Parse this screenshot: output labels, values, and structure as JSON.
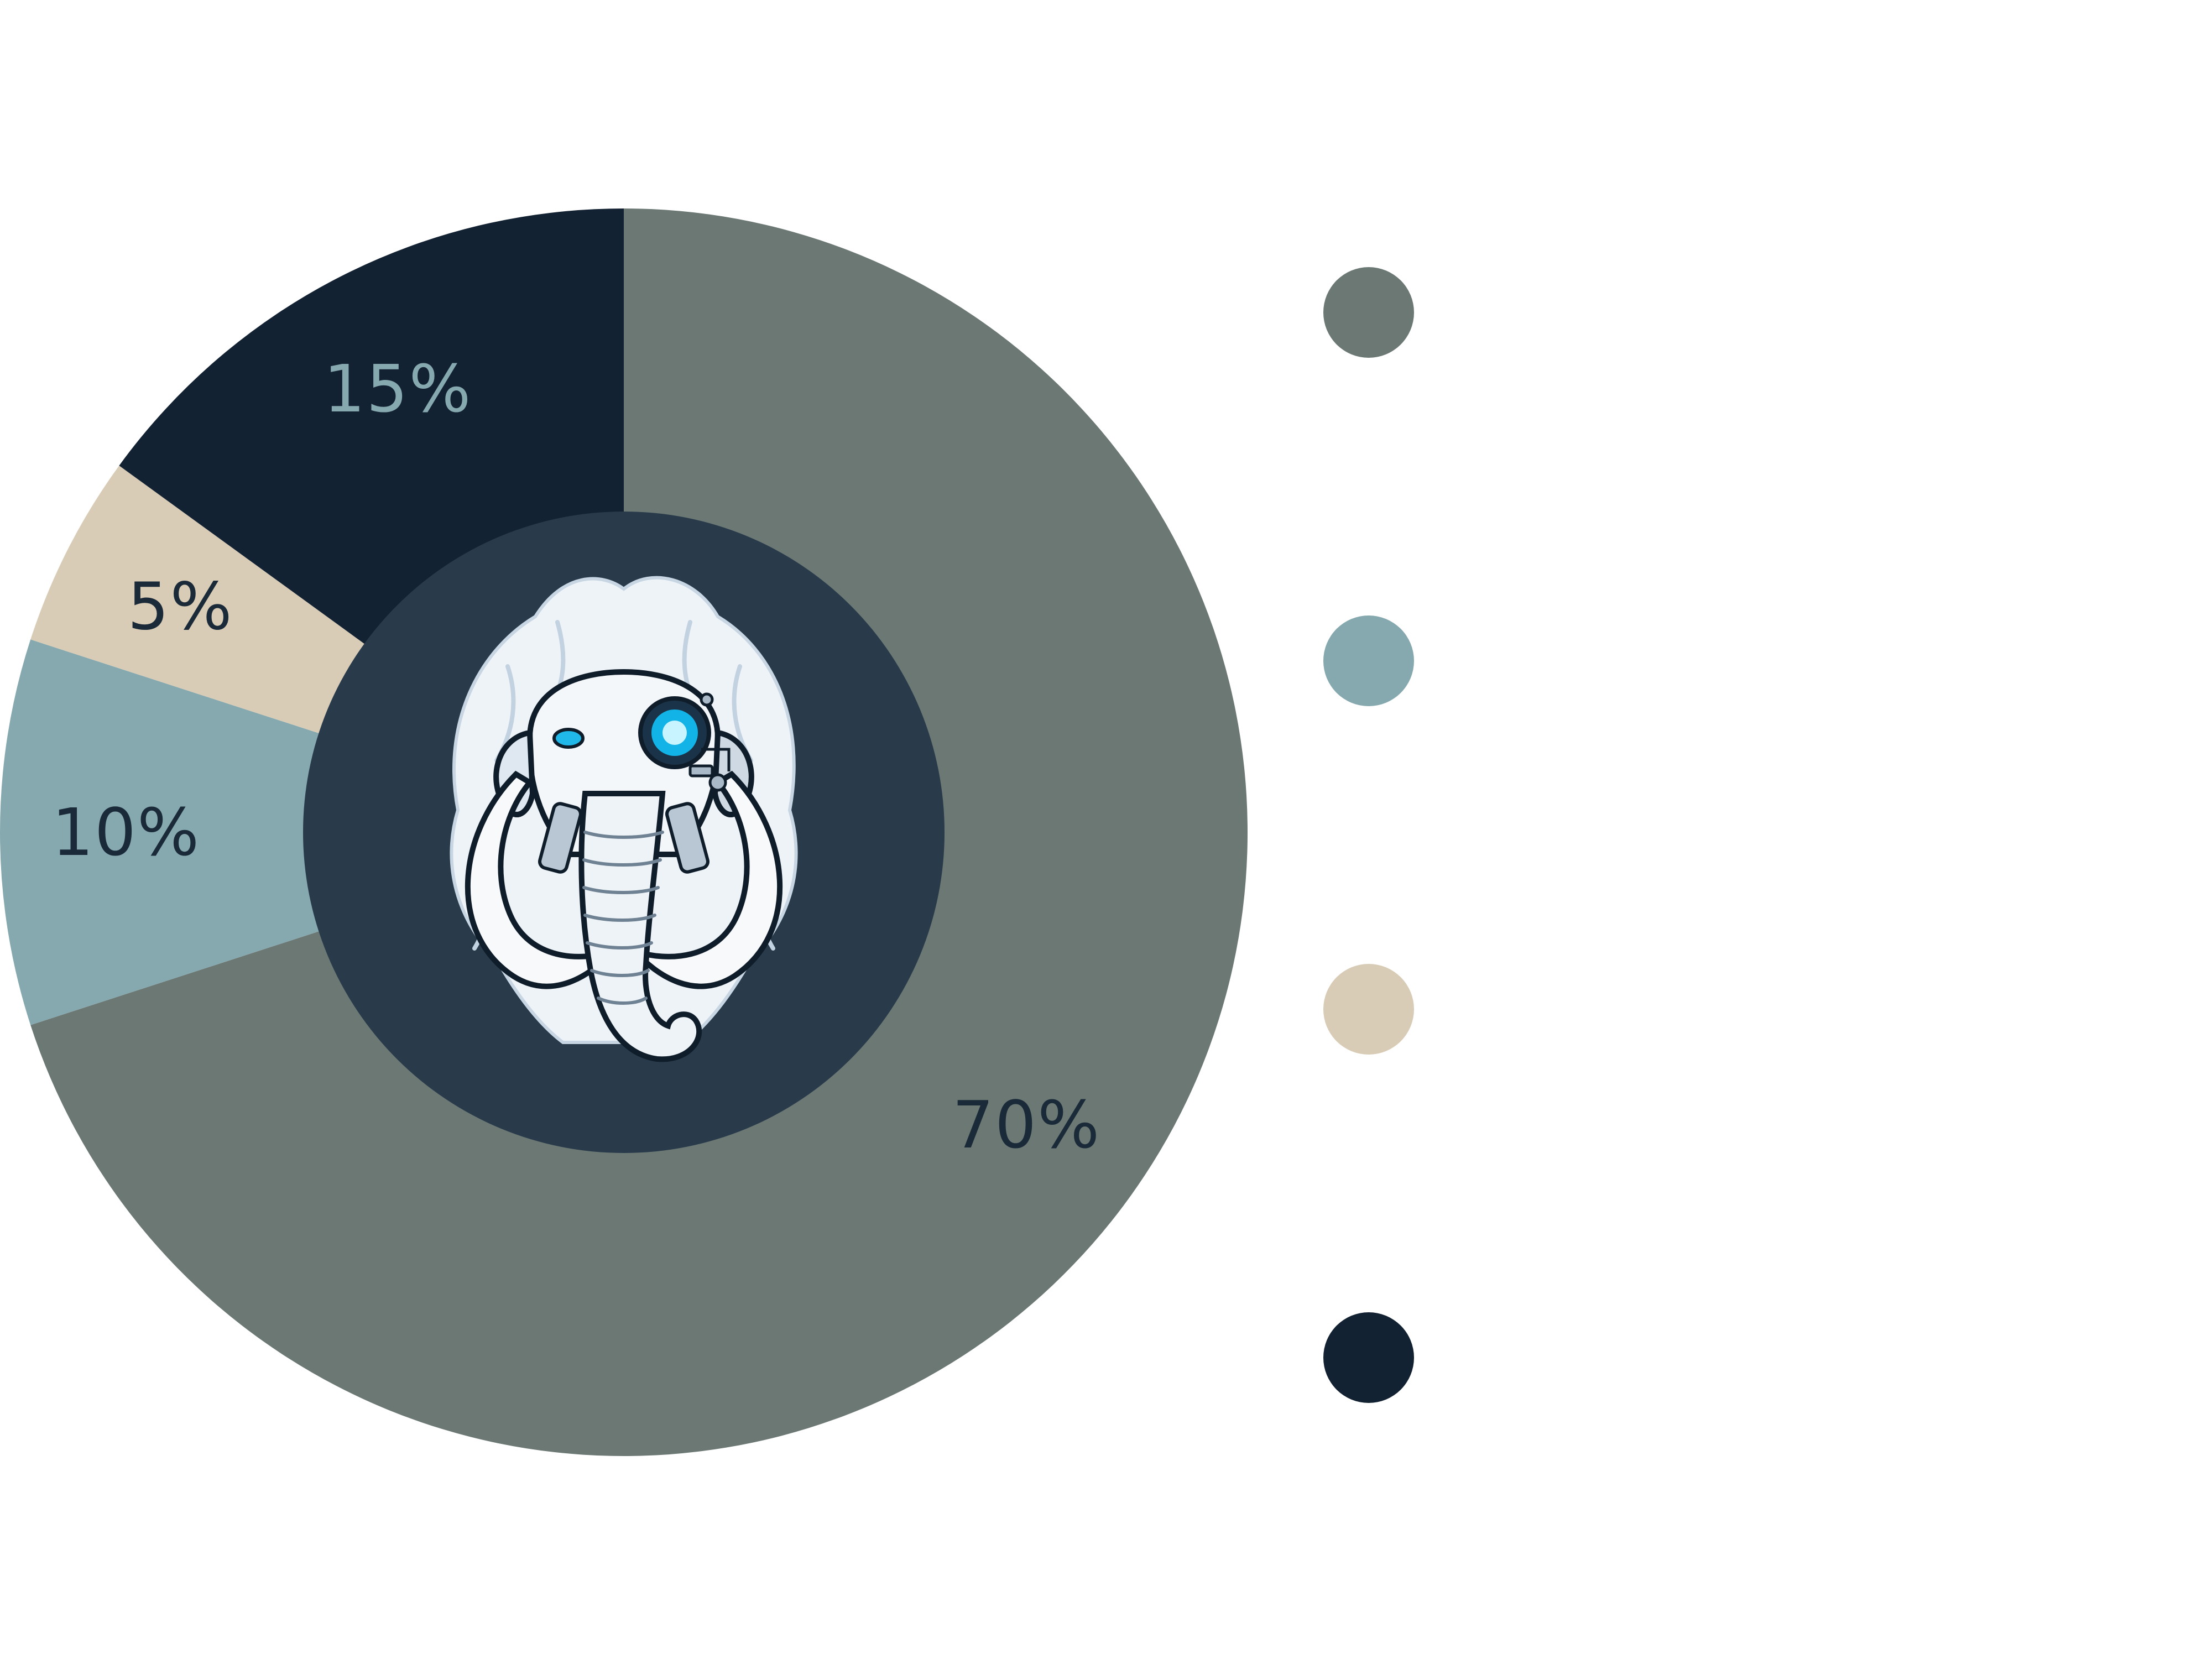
{
  "chart_data": {
    "type": "pie",
    "variant": "donut",
    "start_angle_deg": 0,
    "direction": "clockwise",
    "slices": [
      {
        "label": "70%",
        "value": 70,
        "color": "#6b7874",
        "label_color": "#1a2a38"
      },
      {
        "label": "10%",
        "value": 10,
        "color": "#86a9b0",
        "label_color": "#1a2a38"
      },
      {
        "label": "5%",
        "value": 5,
        "color": "#d9ccb6",
        "label_color": "#1a2a38"
      },
      {
        "label": "15%",
        "value": 15,
        "color": "#132232",
        "label_color": "#86a9b0"
      }
    ],
    "center_color": "#293a4b",
    "legend": {
      "placement": "right",
      "items": [
        {
          "color": "#6b7874"
        },
        {
          "color": "#86a9b0"
        },
        {
          "color": "#d9ccb6"
        },
        {
          "color": "#132232"
        }
      ]
    }
  },
  "center_emblem": {
    "icon": "cyber-mammoth-icon"
  }
}
